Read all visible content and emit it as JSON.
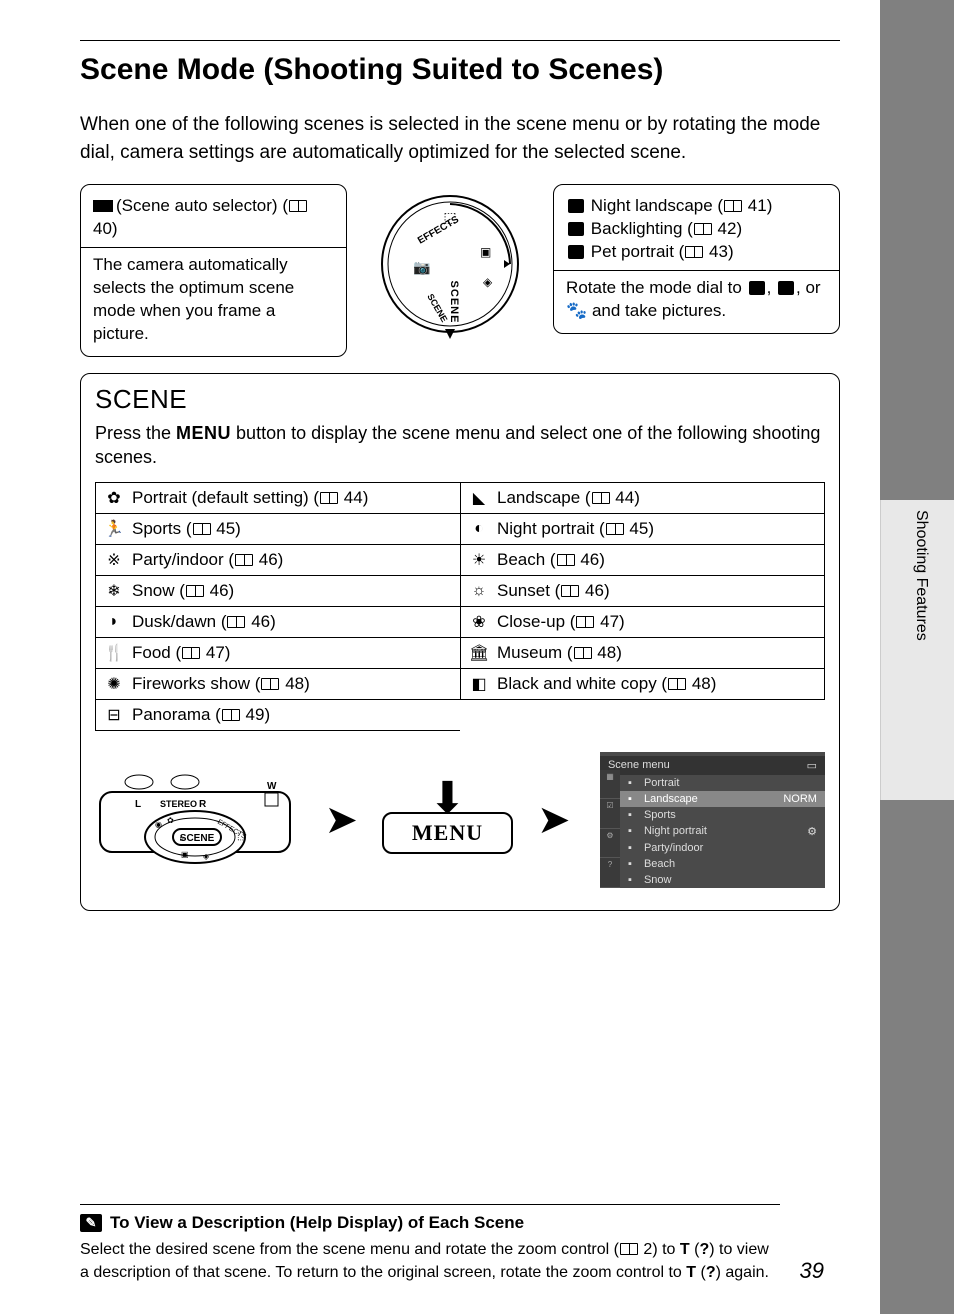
{
  "page_title": "Scene Mode (Shooting Suited to Scenes)",
  "intro": "When one of the following scenes is selected in the scene menu or by rotating the mode dial, camera settings are automatically optimized for the selected scene.",
  "auto_selector": {
    "heading_pre": "(Scene auto selector)",
    "page_ref": "40",
    "body": "The camera automatically selects the optimum scene mode when you frame a picture."
  },
  "right_box": {
    "lines": [
      {
        "icon": "night-landscape",
        "label": "Night landscape",
        "ref": "41"
      },
      {
        "icon": "backlighting",
        "label": "Backlighting",
        "ref": "42"
      },
      {
        "icon": "pet",
        "label": "Pet portrait",
        "ref": "43"
      }
    ],
    "instructions_pre": "Rotate the mode dial to ",
    "instructions_mid": " or ",
    "instructions_post": " and take pictures."
  },
  "scene_section": {
    "title": "SCENE",
    "desc_pre": "Press the ",
    "menu_word": "MENU",
    "desc_post": " button to display the scene menu and select one of the following shooting scenes.",
    "left_col": [
      {
        "icon": "portrait",
        "glyph": "✿",
        "label": "Portrait (default setting)",
        "ref": "44"
      },
      {
        "icon": "sports",
        "glyph": "🏃",
        "label": "Sports",
        "ref": "45"
      },
      {
        "icon": "party",
        "glyph": "※",
        "label": "Party/indoor",
        "ref": "46"
      },
      {
        "icon": "snow",
        "glyph": "❄",
        "label": "Snow",
        "ref": "46"
      },
      {
        "icon": "dusk",
        "glyph": "◗",
        "label": "Dusk/dawn",
        "ref": "46"
      },
      {
        "icon": "food",
        "glyph": "🍴",
        "label": "Food",
        "ref": "47"
      },
      {
        "icon": "fireworks",
        "glyph": "✺",
        "label": "Fireworks show",
        "ref": "48"
      },
      {
        "icon": "panorama",
        "glyph": "⊟",
        "label": "Panorama",
        "ref": "49"
      }
    ],
    "right_col": [
      {
        "icon": "landscape",
        "glyph": "◣",
        "label": "Landscape",
        "ref": "44"
      },
      {
        "icon": "night-portrait",
        "glyph": "◐",
        "label": "Night portrait",
        "ref": "45"
      },
      {
        "icon": "beach",
        "glyph": "☀",
        "label": "Beach",
        "ref": "46"
      },
      {
        "icon": "sunset",
        "glyph": "☼",
        "label": "Sunset",
        "ref": "46"
      },
      {
        "icon": "closeup",
        "glyph": "❀",
        "label": "Close-up",
        "ref": "47"
      },
      {
        "icon": "museum",
        "glyph": "🏛",
        "label": "Museum",
        "ref": "48"
      },
      {
        "icon": "bwcopy",
        "glyph": "◧",
        "label": "Black and white copy",
        "ref": "48"
      }
    ]
  },
  "menu_button_label": "MENU",
  "screen_menu": {
    "title": "Scene menu",
    "items": [
      {
        "label": "Portrait",
        "right": ""
      },
      {
        "label": "Landscape",
        "right": "NORM",
        "selected": true
      },
      {
        "label": "Sports",
        "right": ""
      },
      {
        "label": "Night portrait",
        "right": "⚙"
      },
      {
        "label": "Party/indoor",
        "right": ""
      },
      {
        "label": "Beach",
        "right": ""
      },
      {
        "label": "Snow",
        "right": ""
      }
    ]
  },
  "side_tab": "Shooting Features",
  "footer": {
    "title": "To View a Description (Help Display) of Each Scene",
    "body_pre": "Select the desired scene from the scene menu and rotate the zoom control (",
    "ref1": "2",
    "body_mid": ") to ",
    "t_glyph": "T",
    "body_mid2": " to view a description of that scene. To return to the original screen, rotate the zoom control to ",
    "body_post": " again."
  },
  "page_number": "39"
}
